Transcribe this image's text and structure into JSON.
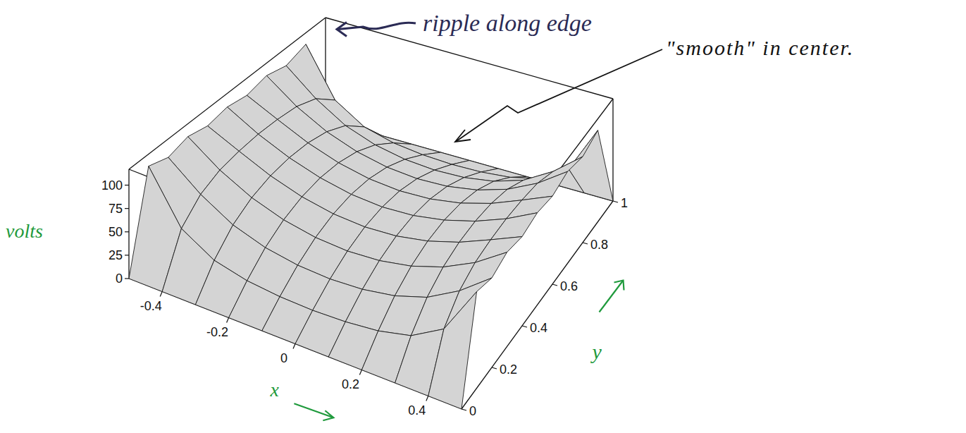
{
  "chart_data": {
    "type": "surface",
    "x_label": "x",
    "y_label": "y",
    "z_label": "volts",
    "annotations": [
      {
        "text": "ripple along edge"
      },
      {
        "text": "\"smooth\" in center."
      }
    ],
    "color": "#d4d4d4",
    "x": [
      -0.5,
      -0.4,
      -0.3,
      -0.2,
      -0.1,
      0,
      0.1,
      0.2,
      0.3,
      0.4,
      0.5
    ],
    "y": [
      0,
      0.1,
      0.2,
      0.3,
      0.4,
      0.5,
      0.6,
      0.7,
      0.8,
      0.9,
      1
    ],
    "z": [
      [
        0,
        0,
        0,
        0,
        0,
        0,
        0,
        0,
        0,
        0,
        0
      ],
      [
        104,
        50.3,
        29.6,
        21.2,
        17.5,
        16.3,
        17.5,
        21.2,
        29.6,
        50.3,
        104
      ],
      [
        97,
        70.0,
        49.9,
        38.4,
        32.4,
        30.5,
        32.4,
        38.4,
        49.9,
        70.0,
        97
      ],
      [
        103,
        79.1,
        61.6,
        50.0,
        43.4,
        41.2,
        43.4,
        50.0,
        61.6,
        79.1,
        103
      ],
      [
        98,
        82.4,
        67.5,
        56.6,
        50.0,
        47.8,
        50.0,
        56.6,
        67.5,
        82.4,
        98
      ],
      [
        102,
        83.7,
        69.3,
        58.8,
        52.2,
        49.9,
        52.2,
        58.8,
        69.3,
        83.7,
        102
      ],
      [
        98,
        82.4,
        67.5,
        56.6,
        50.0,
        47.8,
        50.0,
        56.6,
        67.5,
        82.4,
        98
      ],
      [
        103,
        79.1,
        61.6,
        50.0,
        43.4,
        41.2,
        43.4,
        50.0,
        61.6,
        79.1,
        103
      ],
      [
        97,
        70.0,
        49.9,
        38.4,
        32.4,
        30.5,
        32.4,
        38.4,
        49.9,
        70.0,
        97
      ],
      [
        104,
        50.3,
        29.6,
        21.2,
        17.5,
        16.3,
        17.5,
        21.2,
        29.6,
        50.3,
        104
      ],
      [
        0,
        0,
        0,
        0,
        0,
        0,
        0,
        0,
        0,
        0,
        0
      ]
    ],
    "xlim": [
      -0.5,
      0.5
    ],
    "xticks": [
      -0.4,
      -0.2,
      0,
      0.2,
      0.4
    ],
    "ylim": [
      0,
      1
    ],
    "yticks": [
      0,
      0.2,
      0.4,
      0.6,
      0.8,
      1
    ],
    "zlim": [
      0,
      117
    ],
    "zticks": [
      0,
      25,
      50,
      75,
      100
    ]
  }
}
